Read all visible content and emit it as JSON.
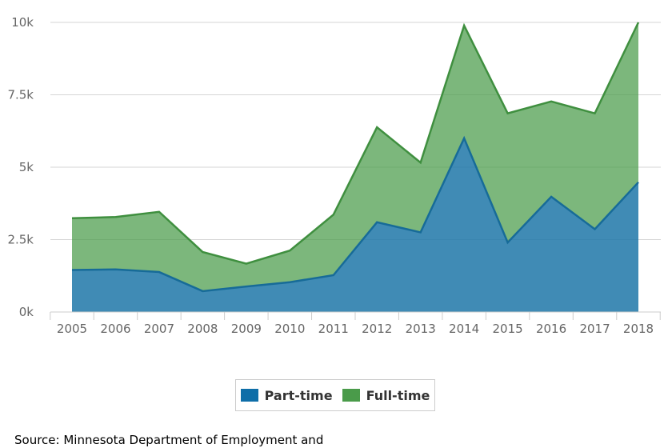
{
  "chart_data": {
    "type": "area",
    "stacked": true,
    "title": "",
    "xlabel": "",
    "ylabel": "",
    "categories": [
      "2005",
      "2006",
      "2007",
      "2008",
      "2009",
      "2010",
      "2011",
      "2012",
      "2013",
      "2014",
      "2015",
      "2016",
      "2017",
      "2018"
    ],
    "ylim": [
      0,
      10000
    ],
    "yticks": [
      0,
      2500,
      5000,
      7500,
      10000
    ],
    "ytick_labels": [
      "0k",
      "2.5k",
      "5k",
      "7.5k",
      "10k"
    ],
    "grid": true,
    "legend_position": "bottom-center",
    "series": [
      {
        "name": "Part-time",
        "color": "#1f77a8",
        "values": [
          1450,
          1470,
          1380,
          720,
          880,
          1030,
          1270,
          3100,
          2750,
          6000,
          2400,
          3980,
          2860,
          4480
        ]
      },
      {
        "name": "Full-time",
        "color": "#4a9b4a",
        "values": [
          1790,
          1810,
          2080,
          1350,
          790,
          1090,
          2090,
          3280,
          2410,
          3890,
          4460,
          3290,
          4000,
          5520
        ]
      }
    ]
  },
  "legend": {
    "items": [
      {
        "label": "Part-time",
        "color": "#0e6ea8"
      },
      {
        "label": "Full-time",
        "color": "#4a9b4a"
      }
    ]
  },
  "footer": {
    "source": "Source: Minnesota Department of Employment and"
  }
}
